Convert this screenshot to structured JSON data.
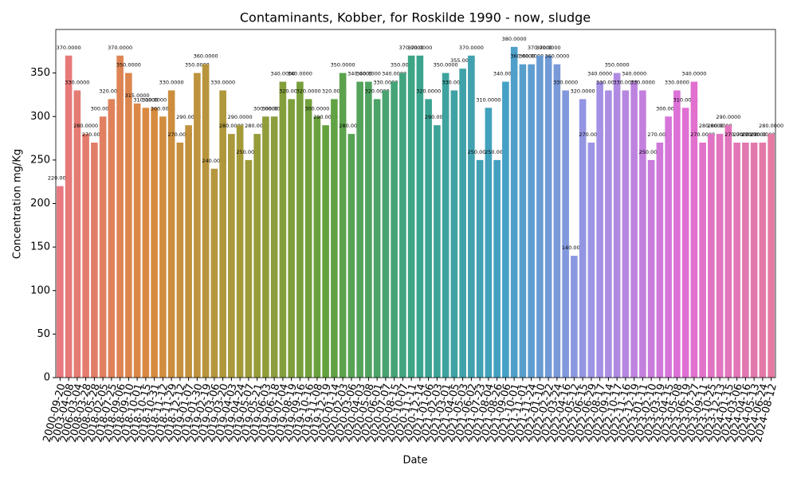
{
  "chart_data": {
    "type": "bar",
    "title": "Contaminants, Kobber, for Roskilde 1990 - now, sludge",
    "xlabel": "Date",
    "ylabel": "Concentration mg/Kg",
    "categories": [
      "2000-09-20",
      "2003-04-08",
      "2006-03-04",
      "2008-03-28",
      "2008-05-28",
      "2018-02-05",
      "2018-07-25",
      "2018-09-06",
      "2018-09-10",
      "2018-10-01",
      "2018-10-15",
      "2018-10-31",
      "2018-11-12",
      "2018-11-29",
      "2018-12-12",
      "2019-01-07",
      "2019-01-30",
      "2019-02-19",
      "2019-03-06",
      "2019-03-20",
      "2019-04-03",
      "2019-04-24",
      "2019-05-07",
      "2019-05-21",
      "2019-06-03",
      "2019-06-18",
      "2019-07-04",
      "2019-08-19",
      "2019-09-16",
      "2019-10-16",
      "2019-11-08",
      "2019-12-19",
      "2020-01-14",
      "2020-02-03",
      "2020-03-06",
      "2020-04-03",
      "2020-05-08",
      "2020-06-01",
      "2020-07-07",
      "2020-08-15",
      "2020-10-07",
      "2020-11-11",
      "2020-12-14",
      "2021-01-06",
      "2021-02-03",
      "2021-03-01",
      "2021-04-05",
      "2021-05-03",
      "2021-06-02",
      "2021-07-23",
      "2021-08-04",
      "2021-08-26",
      "2021-09-06",
      "2021-10-01",
      "2021-11-01",
      "2021-11-24",
      "2022-01-10",
      "2022-02-22",
      "2022-03-24",
      "2022-04-16",
      "2022-05-12",
      "2022-06-15",
      "2022-06-29",
      "2022-08-17",
      "2022-09-14",
      "2022-10-17",
      "2022-11-16",
      "2022-12-19",
      "2023-01-11",
      "2023-02-10",
      "2023-03-19",
      "2023-04-15",
      "2023-05-08",
      "2023-06-19",
      "2023-07-27",
      "2023-09-11",
      "2023-10-25",
      "2023-12-13",
      "2024-01-15",
      "2024-03-06",
      "2024-04-16",
      "2024-05-13",
      "2024-06-24",
      "2024-08-12"
    ],
    "values": [
      220,
      370,
      330,
      280,
      270,
      300,
      320,
      370,
      350,
      315,
      310,
      310,
      300,
      330,
      270,
      290,
      350,
      360,
      240,
      330,
      280,
      290,
      250,
      280,
      300,
      300,
      340,
      320,
      340,
      320,
      300,
      290,
      320,
      350,
      280,
      340,
      340,
      320,
      330,
      340,
      350,
      370,
      370,
      320,
      290,
      350,
      330,
      355,
      370,
      250,
      310,
      250,
      340,
      380,
      360,
      360,
      370,
      370,
      360,
      330,
      140,
      320,
      270,
      340,
      330,
      350,
      330,
      340,
      330,
      250,
      270,
      300,
      330,
      310,
      340,
      270,
      280,
      280,
      290,
      270,
      270,
      270,
      270,
      280
    ],
    "value_labels": [
      "220.0000",
      "370.0000",
      "330.0000",
      "280.0000",
      "270.0000",
      "300.0000",
      "320.0000",
      "370.0000",
      "350.0000",
      "315.0000",
      "310.0000",
      "310.0000",
      "300.0000",
      "330.0000",
      "270.0000",
      "290.0000",
      "350.0000",
      "360.0000",
      "240.0000",
      "330.0000",
      "280.0000",
      "290.0000",
      "250.0000",
      "280.0000",
      "300.0000",
      "300.0000",
      "340.0000",
      "320.0000",
      "340.0000",
      "320.0000",
      "300.0000",
      "290.0000",
      "320.0000",
      "350.0000",
      "280.0000",
      "340.0000",
      "340.0000",
      "320.0000",
      "330.0000",
      "340.0000",
      "350.0000",
      "370.0000",
      "370.0000",
      "320.0000",
      "290.0000",
      "350.0000",
      "330.0000",
      "355.0000",
      "370.0000",
      "250.0000",
      "310.0000",
      "250.0000",
      "340.0000",
      "380.0000",
      "360.0000",
      "360.0000",
      "370.0000",
      "370.0000",
      "360.0000",
      "330.0000",
      "140.0000",
      "320.0000",
      "270.0000",
      "340.0000",
      "330.0000",
      "350.0000",
      "330.0000",
      "340.0000",
      "330.0000",
      "250.0000",
      "270.0000",
      "300.0000",
      "330.0000",
      "310.0000",
      "340.0000",
      "270.0000",
      "280.0000",
      "280.0000",
      "290.0000",
      "270.0000",
      "270.0000",
      "270.0000",
      "270.0000",
      "280.0000"
    ],
    "palette": [
      "#e8777f",
      "#d98a40",
      "#a69a3a",
      "#63a23e",
      "#3ba489",
      "#44a0c6",
      "#9f94e6",
      "#e06fd6",
      "#e47aa3"
    ],
    "ylim": [
      0,
      400
    ],
    "yticks": [
      0,
      50,
      100,
      150,
      200,
      250,
      300,
      350
    ]
  }
}
